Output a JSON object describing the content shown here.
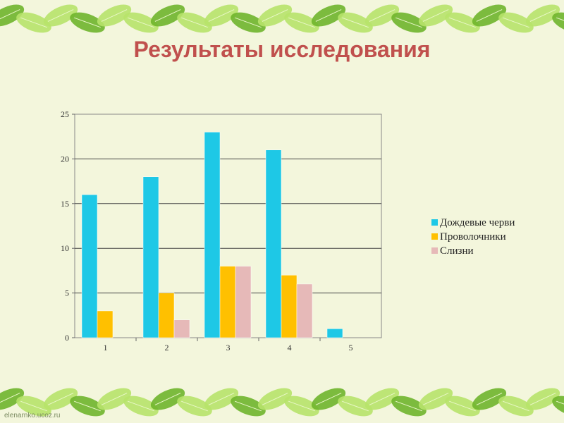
{
  "slide": {
    "title": "Результаты исследования",
    "watermark": "elenarnko.ucoz.ru"
  },
  "colors": {
    "background": "#f3f6dc",
    "title": "#c0504d",
    "leaf_light": "#b7e36a",
    "leaf_dark": "#6fb52c"
  },
  "chart_data": {
    "type": "bar",
    "title": "",
    "xlabel": "",
    "ylabel": "",
    "categories": [
      "1",
      "2",
      "3",
      "4",
      "5"
    ],
    "ylim": [
      0,
      25
    ],
    "yticks": [
      0,
      5,
      10,
      15,
      20,
      25
    ],
    "grid": true,
    "legend_position": "right",
    "series": [
      {
        "name": "Дождевые черви",
        "color": "#1ec8e6",
        "values": [
          16,
          18,
          23,
          21,
          1
        ]
      },
      {
        "name": "Проволочники",
        "color": "#ffc000",
        "values": [
          3,
          5,
          8,
          7,
          0
        ]
      },
      {
        "name": "Слизни",
        "color": "#e6b9b8",
        "values": [
          0,
          2,
          8,
          6,
          0
        ]
      }
    ]
  }
}
